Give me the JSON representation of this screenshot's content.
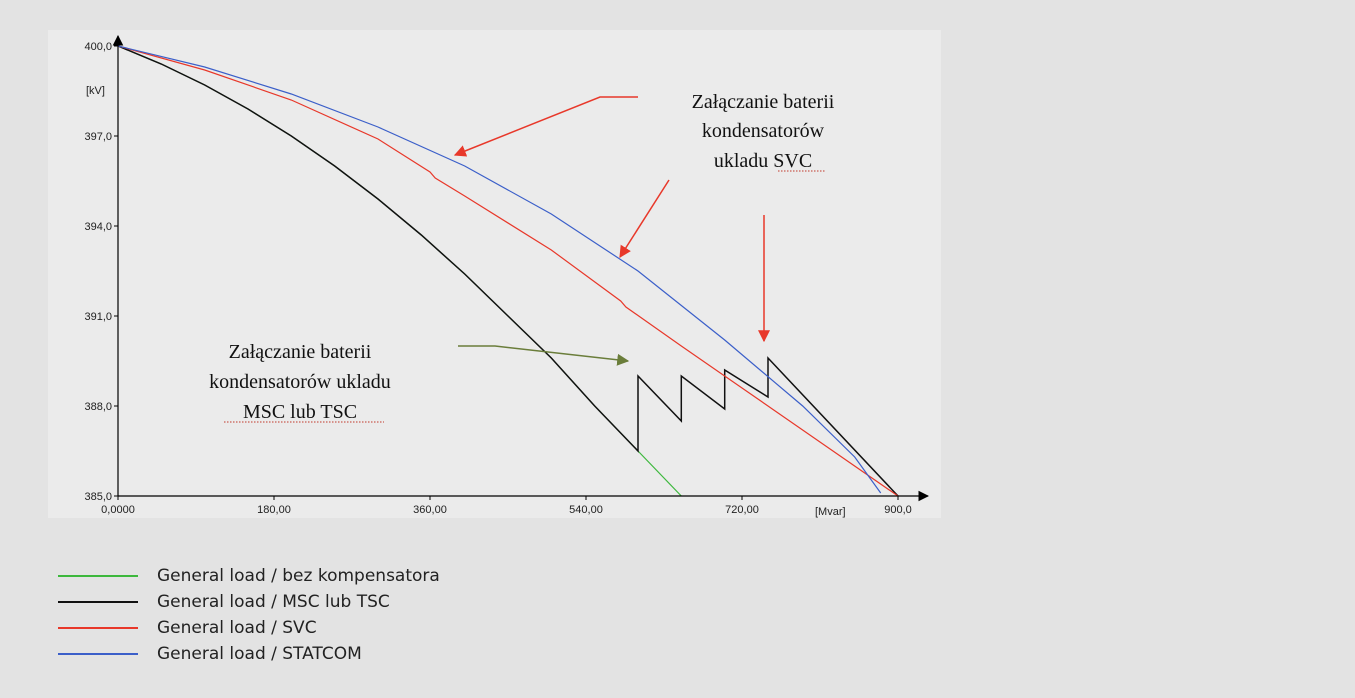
{
  "chart_data": {
    "type": "line",
    "y_unit": "[kV]",
    "x_unit": "[Mvar]",
    "xlim": [
      0,
      900
    ],
    "ylim": [
      385,
      400
    ],
    "x_ticks": [
      0,
      180,
      360,
      540,
      720,
      900
    ],
    "x_tick_labels": [
      "0,0000",
      "180,00",
      "360,00",
      "540,00",
      "720,00",
      "900,0"
    ],
    "y_ticks": [
      385,
      388,
      391,
      394,
      397,
      400
    ],
    "y_tick_labels": [
      "385,0",
      "388,0",
      "391,0",
      "394,0",
      "397,0",
      "400,0"
    ],
    "grid": false,
    "legend_position": "bottom-left",
    "series": [
      {
        "name": "General load / bez kompensatora",
        "color": "#3db83d",
        "x": [
          0,
          50,
          100,
          150,
          200,
          250,
          300,
          350,
          400,
          450,
          500,
          550,
          600,
          650,
          685
        ],
        "y": [
          400,
          399.4,
          398.7,
          397.9,
          397.0,
          396.0,
          394.9,
          393.7,
          392.4,
          391.0,
          389.6,
          388.0,
          386.5,
          385.0,
          384.2
        ]
      },
      {
        "name": "General load / MSC lub TSC",
        "color": "#111111",
        "x": [
          0,
          50,
          100,
          150,
          200,
          250,
          300,
          350,
          400,
          450,
          500,
          550,
          600,
          600,
          650,
          650,
          700,
          700,
          750,
          750,
          900
        ],
        "y": [
          400,
          399.4,
          398.7,
          397.9,
          397.0,
          396.0,
          394.9,
          393.7,
          392.4,
          391.0,
          389.6,
          388.0,
          386.5,
          389.0,
          387.5,
          389.0,
          387.9,
          389.2,
          388.3,
          389.6,
          385.0
        ]
      },
      {
        "name": "General load / SVC",
        "color": "#e8382a",
        "x": [
          0,
          100,
          200,
          300,
          360,
          366,
          400,
          500,
          580,
          586,
          650,
          750,
          755,
          800,
          900
        ],
        "y": [
          400,
          399.2,
          398.2,
          396.9,
          395.8,
          395.6,
          395.0,
          393.2,
          391.5,
          391.3,
          390.0,
          388.0,
          387.9,
          387.0,
          385.0
        ]
      },
      {
        "name": "General load / STATCOM",
        "color": "#3b5fc9",
        "x": [
          0,
          100,
          200,
          300,
          400,
          500,
          600,
          700,
          790,
          850,
          880
        ],
        "y": [
          400,
          399.3,
          398.4,
          397.3,
          396.0,
          394.4,
          392.5,
          390.2,
          388.0,
          386.3,
          385.1
        ]
      }
    ],
    "annotations": [
      {
        "text_lines": [
          "Załączanie baterii",
          "kondensatorów",
          "ukladu SVC"
        ],
        "color": "#111111",
        "arrow_color": "#e8382a"
      },
      {
        "text_lines": [
          "Załączanie baterii",
          "kondensatorów ukladu",
          "MSC lub TSC"
        ],
        "color": "#111111",
        "arrow_color": "#6a7d3a"
      }
    ]
  }
}
